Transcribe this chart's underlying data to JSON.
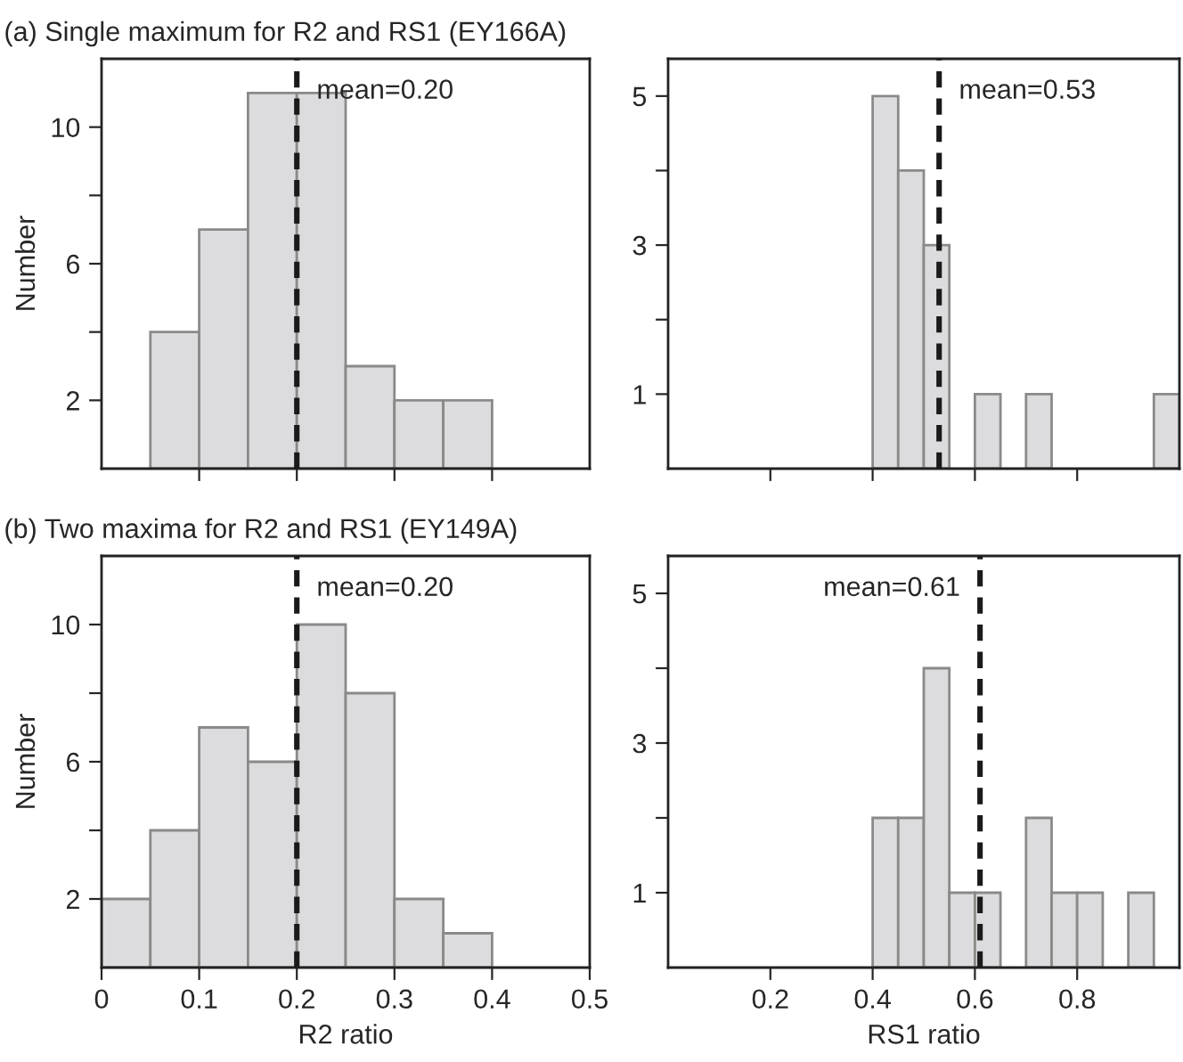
{
  "chart_data": [
    {
      "type": "histogram",
      "title": "(a) Single maximum for R2 and RS1 (EY166A)",
      "ylabel": "Number",
      "bins": [
        0.05,
        0.1,
        0.15,
        0.2,
        0.25,
        0.3,
        0.35,
        0.4
      ],
      "values": [
        4,
        7,
        11,
        11,
        3,
        2,
        2
      ],
      "color": "#dcdcde",
      "xlim": [
        0,
        0.5
      ],
      "xticks": [
        {
          "value": 0.1,
          "label": null
        },
        {
          "value": 0.2,
          "label": null
        },
        {
          "value": 0.3,
          "label": null
        },
        {
          "value": 0.4,
          "label": null
        }
      ],
      "ylim": [
        0,
        12
      ],
      "yticks": [
        2,
        {
          "value": 4,
          "label": null
        },
        6,
        {
          "value": 8,
          "label": null
        },
        10
      ],
      "tick_labels": "y",
      "grid": false,
      "legend": false,
      "ref_lines": [
        {
          "axis": "x",
          "value": 0.2,
          "color": "#1a1a1a",
          "line_style": "dashed",
          "label": "mean=0.20"
        }
      ]
    },
    {
      "type": "histogram",
      "bins": [
        0.4,
        0.45,
        0.5,
        0.55,
        0.6,
        0.65,
        0.7,
        0.75,
        0.8,
        0.85,
        0.9,
        0.95,
        1.0
      ],
      "values": [
        5,
        4,
        3,
        0,
        1,
        0,
        1,
        0,
        0,
        0,
        0,
        1
      ],
      "color": "#dcdcde",
      "xlim": [
        0,
        1.0
      ],
      "xticks": [
        {
          "value": 0.2,
          "label": null
        },
        {
          "value": 0.4,
          "label": null
        },
        {
          "value": 0.6,
          "label": null
        },
        {
          "value": 0.8,
          "label": null
        }
      ],
      "ylim": [
        0,
        5.5
      ],
      "yticks": [
        1,
        {
          "value": 2,
          "label": null
        },
        3,
        {
          "value": 4,
          "label": null
        },
        5
      ],
      "tick_labels": "y",
      "grid": false,
      "legend": false,
      "ref_lines": [
        {
          "axis": "x",
          "value": 0.53,
          "color": "#1a1a1a",
          "line_style": "dashed",
          "label": "mean=0.53"
        }
      ]
    },
    {
      "type": "histogram",
      "title": "(b) Two maxima for R2 and RS1 (EY149A)",
      "xlabel": "R2 ratio",
      "ylabel": "Number",
      "bins": [
        0,
        0.05,
        0.1,
        0.15,
        0.2,
        0.25,
        0.3,
        0.35,
        0.4
      ],
      "values": [
        2,
        4,
        7,
        6,
        10,
        8,
        2,
        1
      ],
      "color": "#dcdcde",
      "xlim": [
        0,
        0.5
      ],
      "xticks": [
        0,
        0.1,
        0.2,
        0.3,
        0.4,
        0.5
      ],
      "ylim": [
        0,
        12
      ],
      "yticks": [
        2,
        {
          "value": 4,
          "label": null
        },
        6,
        {
          "value": 8,
          "label": null
        },
        10
      ],
      "grid": false,
      "legend": false,
      "ref_lines": [
        {
          "axis": "x",
          "value": 0.2,
          "color": "#1a1a1a",
          "line_style": "dashed",
          "label": "mean=0.20"
        }
      ]
    },
    {
      "type": "histogram",
      "xlabel": "RS1 ratio",
      "bins": [
        0.4,
        0.45,
        0.5,
        0.55,
        0.6,
        0.65,
        0.7,
        0.75,
        0.8,
        0.85,
        0.9,
        0.95
      ],
      "values": [
        2,
        2,
        4,
        1,
        1,
        0,
        2,
        1,
        1,
        0,
        1
      ],
      "color": "#dcdcde",
      "xlim": [
        0,
        1.0
      ],
      "xticks": [
        0.2,
        0.4,
        0.6,
        0.8
      ],
      "ylim": [
        0,
        5.5
      ],
      "yticks": [
        1,
        {
          "value": 2,
          "label": null
        },
        3,
        {
          "value": 4,
          "label": null
        },
        5
      ],
      "grid": false,
      "legend": false,
      "ref_lines": [
        {
          "axis": "x",
          "value": 0.61,
          "color": "#1a1a1a",
          "line_style": "dashed",
          "label": "mean=0.61"
        }
      ]
    }
  ]
}
